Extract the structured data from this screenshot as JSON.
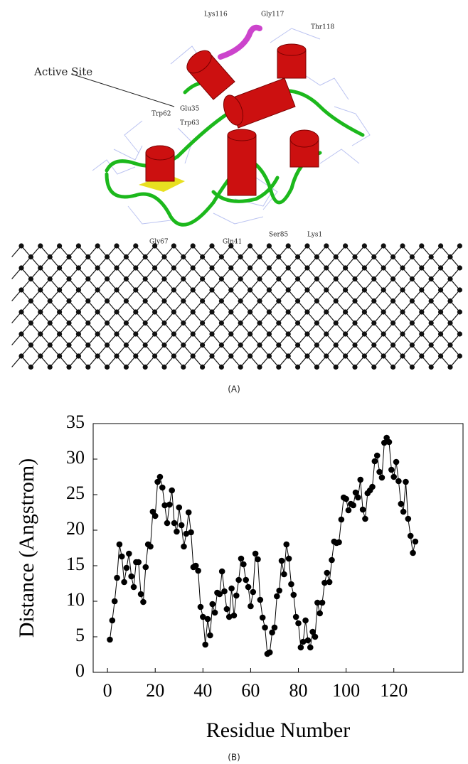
{
  "panel_a": {
    "labels": [
      "Lys116",
      "Gly117",
      "Thr118",
      "Active Site",
      "Trp62",
      "Glu35",
      "Trp63",
      "Gly67",
      "Gln41",
      "Ser85",
      "Lys1"
    ],
    "caption": "(A)"
  },
  "chart_data": {
    "type": "line",
    "caption": "(B)",
    "x_label": "Residue Number",
    "y_label": "Distance (Angstrom)",
    "x": [
      1,
      2,
      3,
      4,
      5,
      6,
      7,
      8,
      9,
      10,
      11,
      12,
      13,
      14,
      15,
      16,
      17,
      18,
      19,
      20,
      21,
      22,
      23,
      24,
      25,
      26,
      27,
      28,
      29,
      30,
      31,
      32,
      33,
      34,
      35,
      36,
      37,
      38,
      39,
      40,
      41,
      42,
      43,
      44,
      45,
      46,
      47,
      48,
      49,
      50,
      51,
      52,
      53,
      54,
      55,
      56,
      57,
      58,
      59,
      60,
      61,
      62,
      63,
      64,
      65,
      66,
      67,
      68,
      69,
      70,
      71,
      72,
      73,
      74,
      75,
      76,
      77,
      78,
      79,
      80,
      81,
      82,
      83,
      84,
      85,
      86,
      87,
      88,
      89,
      90,
      91,
      92,
      93,
      94,
      95,
      96,
      97,
      98,
      99,
      100,
      101,
      102,
      103,
      104,
      105,
      106,
      107,
      108,
      109,
      110,
      111,
      112,
      113,
      114,
      115,
      116,
      117,
      118,
      119,
      120,
      121,
      122,
      123,
      124,
      125,
      126,
      127,
      128,
      129
    ],
    "series": [
      {
        "color": "#000000",
        "values": [
          4.6,
          7.3,
          10,
          13.3,
          18,
          16.3,
          12.7,
          14.7,
          16.7,
          13.5,
          12,
          15.5,
          15.5,
          11,
          9.9,
          14.8,
          18,
          17.7,
          22.6,
          22,
          26.8,
          27.5,
          26,
          23.5,
          21,
          23.6,
          25.6,
          21,
          19.8,
          23.2,
          20.7,
          17.7,
          19.5,
          22.5,
          19.7,
          14.8,
          15,
          14.3,
          9.2,
          7.8,
          3.9,
          7.5,
          5.2,
          9.6,
          8.4,
          11.2,
          11,
          14.2,
          11.4,
          8.9,
          7.8,
          11.8,
          8,
          10.8,
          13,
          16,
          15.2,
          13,
          12,
          9.3,
          11.3,
          16.7,
          15.9,
          10.2,
          7.7,
          6.3,
          2.6,
          2.8,
          5.6,
          6.3,
          10.7,
          11.5,
          15.7,
          13.8,
          18,
          16,
          12.4,
          10.9,
          7.8,
          6.9,
          3.5,
          4.3,
          7.3,
          4.5,
          3.5,
          5.7,
          5,
          9.8,
          8.3,
          9.8,
          12.6,
          14,
          12.7,
          15.8,
          18.4,
          18.2,
          18.3,
          21.5,
          24.6,
          24.4,
          22.8,
          23.7,
          23.5,
          25.3,
          24.6,
          27.1,
          22.9,
          21.6,
          25.2,
          25.6,
          26.1,
          29.7,
          30.5,
          28.2,
          27.4,
          32.3,
          33,
          32.4,
          28.5,
          27.5,
          29.6,
          26.9,
          23.7,
          22.6,
          26.8,
          21.6,
          19.2,
          16.8,
          18.4
        ]
      }
    ],
    "xlim": [
      -6,
      149
    ],
    "xticks": [
      0,
      20,
      40,
      60,
      80,
      100,
      120
    ],
    "ylim": [
      0,
      35
    ],
    "yticks": [
      0,
      5,
      10,
      15,
      20,
      25,
      30,
      35
    ]
  }
}
